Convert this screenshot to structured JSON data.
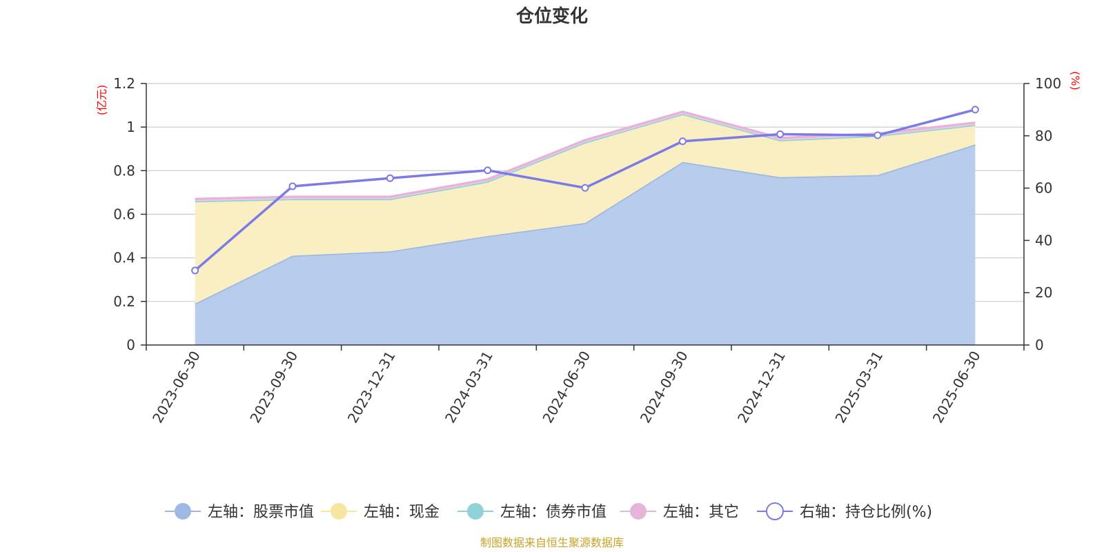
{
  "chart_data": {
    "type": "area",
    "title": "仓位变化",
    "left_unit": "(亿元)",
    "right_unit": "(%)",
    "categories": [
      "2023-06-30",
      "2023-09-30",
      "2023-12-31",
      "2024-03-31",
      "2024-06-30",
      "2024-09-30",
      "2024-12-31",
      "2025-03-31",
      "2025-06-30"
    ],
    "left_axis": {
      "ylim": [
        0,
        1.2
      ],
      "ticks": [
        "0",
        "0.2",
        "0.4",
        "0.6",
        "0.8",
        "1",
        "1.2"
      ],
      "tick_values": [
        0,
        0.2,
        0.4,
        0.6,
        0.8,
        1.0,
        1.2
      ]
    },
    "right_axis": {
      "ylim": [
        0,
        100
      ],
      "ticks": [
        "0",
        "20",
        "40",
        "60",
        "80",
        "100"
      ],
      "tick_values": [
        0,
        20,
        40,
        60,
        80,
        100
      ]
    },
    "grid": true,
    "legend_position": "bottom",
    "series": [
      {
        "name": "左轴：股票市值",
        "axis": "left",
        "kind": "stacked-area",
        "color": "#9db8e2",
        "fill": "#b8cdeb",
        "values": [
          0.19,
          0.41,
          0.43,
          0.5,
          0.56,
          0.84,
          0.77,
          0.78,
          0.92
        ]
      },
      {
        "name": "左轴：现金",
        "axis": "left",
        "kind": "stacked-area",
        "color": "#f7e6a0",
        "fill": "#faefc2",
        "values": [
          0.47,
          0.26,
          0.24,
          0.25,
          0.37,
          0.22,
          0.17,
          0.18,
          0.09
        ]
      },
      {
        "name": "左轴：债券市值",
        "axis": "left",
        "kind": "stacked-area",
        "color": "#8fd3d8",
        "fill": "#b6e3e6",
        "values": [
          0,
          0,
          0,
          0,
          0,
          0,
          0,
          0,
          0
        ]
      },
      {
        "name": "左轴：其它",
        "axis": "left",
        "kind": "stacked-area",
        "color": "#e6b3d9",
        "fill": "#f0d0e8",
        "values": [
          0.01,
          0.01,
          0.01,
          0.01,
          0.01,
          0.01,
          0.01,
          0.01,
          0.01
        ]
      },
      {
        "name": "右轴：持仓比例(%)",
        "axis": "right",
        "kind": "line",
        "color": "#7b7be8",
        "values": [
          28.5,
          60.7,
          63.8,
          66.8,
          60.1,
          77.9,
          80.6,
          80.2,
          90.0
        ]
      }
    ]
  },
  "source_note": "制图数据来自恒生聚源数据库"
}
